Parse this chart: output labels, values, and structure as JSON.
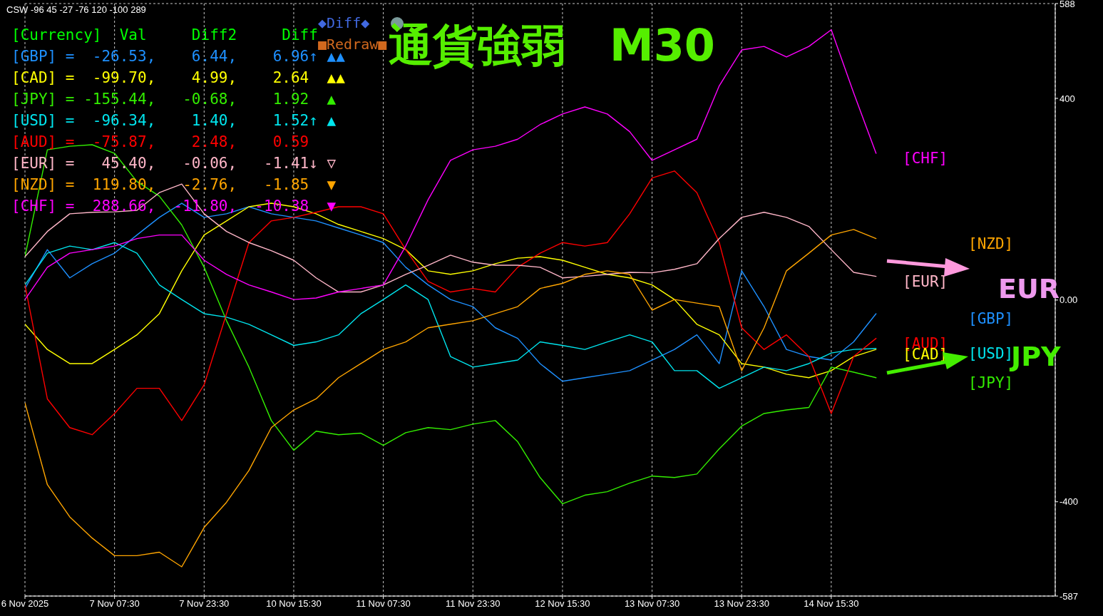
{
  "chart_data": {
    "type": "line",
    "title": "通貨強弱　M30",
    "categories": [
      "6 Nov 2025",
      null,
      null,
      null,
      "7 Nov 07:30",
      null,
      null,
      null,
      "7 Nov 23:30",
      null,
      null,
      null,
      "10 Nov 15:30",
      null,
      null,
      null,
      "11 Nov 07:30",
      null,
      null,
      null,
      "11 Nov 23:30",
      null,
      null,
      null,
      "12 Nov 15:30",
      null,
      null,
      null,
      "13 Nov 07:30",
      null,
      null,
      null,
      "13 Nov 23:30",
      null,
      null,
      null,
      "14 Nov 15:30",
      null,
      null
    ],
    "ylim": [
      -587,
      588
    ],
    "yticks": [
      588,
      400,
      {
        "value": 0,
        "label": "0.00"
      },
      -400,
      -587
    ],
    "grid": true,
    "series": [
      {
        "name": "[GBP]",
        "color": "#1e90ff",
        "values": [
          23,
          100,
          44,
          72,
          93,
          129,
          164,
          192,
          164,
          171,
          185,
          171,
          164,
          157,
          143,
          129,
          114,
          65,
          30,
          1,
          -13,
          -55,
          -76,
          -126,
          -161,
          -154,
          -147,
          -140,
          -119,
          -98,
          -69,
          -126,
          58,
          -13,
          -98,
          -112,
          -119,
          -83,
          -27
        ]
      },
      {
        "name": "[CAD]",
        "color": "#ffff00",
        "values": [
          -48,
          -98,
          -126,
          -126,
          -98,
          -69,
          -27,
          58,
          129,
          157,
          185,
          192,
          185,
          171,
          150,
          136,
          122,
          100,
          58,
          51,
          58,
          72,
          83,
          86,
          79,
          65,
          51,
          44,
          30,
          1,
          -48,
          -69,
          -126,
          -133,
          -147,
          -154,
          -140,
          -112,
          -98
        ]
      },
      {
        "name": "[JPY]",
        "color": "#33ee00",
        "values": [
          86,
          298,
          305,
          308,
          291,
          235,
          206,
          149,
          65,
          -41,
          -133,
          -239,
          -298,
          -260,
          -267,
          -264,
          -288,
          -263,
          -253,
          -257,
          -246,
          -239,
          -281,
          -352,
          -404,
          -387,
          -380,
          -363,
          -349,
          -352,
          -345,
          -295,
          -250,
          -225,
          -218,
          -213,
          -133,
          -143,
          -154
        ]
      },
      {
        "name": "[USD]",
        "color": "#00e5ee",
        "values": [
          30,
          93,
          107,
          100,
          114,
          93,
          30,
          1,
          -27,
          -34,
          -48,
          -69,
          -90,
          -83,
          -69,
          -27,
          1,
          30,
          1,
          -112,
          -133,
          -126,
          -119,
          -83,
          -90,
          -98,
          -83,
          -69,
          -83,
          -140,
          -140,
          -175,
          -154,
          -133,
          -140,
          -126,
          -105,
          -98,
          -96
        ]
      },
      {
        "name": "[AUD]",
        "color": "#ff0000",
        "values": [
          30,
          -196,
          -253,
          -267,
          -225,
          -175,
          -175,
          -239,
          -168,
          -27,
          114,
          157,
          164,
          174,
          185,
          185,
          171,
          100,
          37,
          16,
          23,
          16,
          65,
          93,
          114,
          107,
          114,
          171,
          242,
          256,
          213,
          114,
          -55,
          -98,
          -69,
          -112,
          -225,
          -112,
          -76
        ]
      },
      {
        "name": "[EUR]",
        "color": "#ffb6c8",
        "values": [
          86,
          136,
          171,
          174,
          175,
          178,
          213,
          230,
          171,
          136,
          114,
          98,
          79,
          44,
          16,
          16,
          30,
          51,
          69,
          89,
          75,
          69,
          69,
          65,
          44,
          47,
          51,
          55,
          54,
          61,
          72,
          122,
          164,
          174,
          164,
          146,
          100,
          55,
          47
        ]
      },
      {
        "name": "[NZD]",
        "color": "#ffa500",
        "values": [
          -204,
          -366,
          -430,
          -472,
          -507,
          -507,
          -500,
          -529,
          -451,
          -401,
          -338,
          -253,
          -218,
          -196,
          -154,
          -126,
          -98,
          -83,
          -55,
          -48,
          -41,
          -27,
          -13,
          23,
          33,
          51,
          58,
          51,
          -20,
          1,
          -6,
          -13,
          -140,
          -55,
          58,
          93,
          129,
          140,
          122
        ]
      },
      {
        "name": "[CHF]",
        "color": "#ff00ff",
        "values": [
          1,
          65,
          93,
          100,
          107,
          122,
          129,
          129,
          79,
          51,
          30,
          16,
          1,
          4,
          16,
          23,
          30,
          107,
          199,
          277,
          298,
          305,
          319,
          348,
          369,
          383,
          369,
          334,
          277,
          298,
          319,
          425,
          496,
          503,
          482,
          503,
          536,
          411,
          291
        ]
      }
    ],
    "annotations": [
      "CSW -96 45 -27 -76 120 -100 289",
      "[Currency]  Val     Diff2     Diff",
      "[GBP] =  -26.53,    6.44,    6.96↑ ▲▲",
      "[CAD] =  -99.70,    4.99,    2.64  ▲▲",
      "[JPY] = -155.44,   -0.68,    1.92  ▲",
      "[USD] =  -96.34,    1.40,    1.52↑ ▲",
      "[AUD] =  -75.87,    2.48,    0.59",
      "[EUR] =   45.40,   -0.06,   -1.41↓ ▽",
      "[NZD] =  119.80,   -2.76,   -1.85  ▼",
      "[CHF] =  288.66,  -11.80,  -10.38  ▼",
      "◆Diff◆",
      "■Redraw■",
      "EUR",
      "JPY"
    ]
  }
}
